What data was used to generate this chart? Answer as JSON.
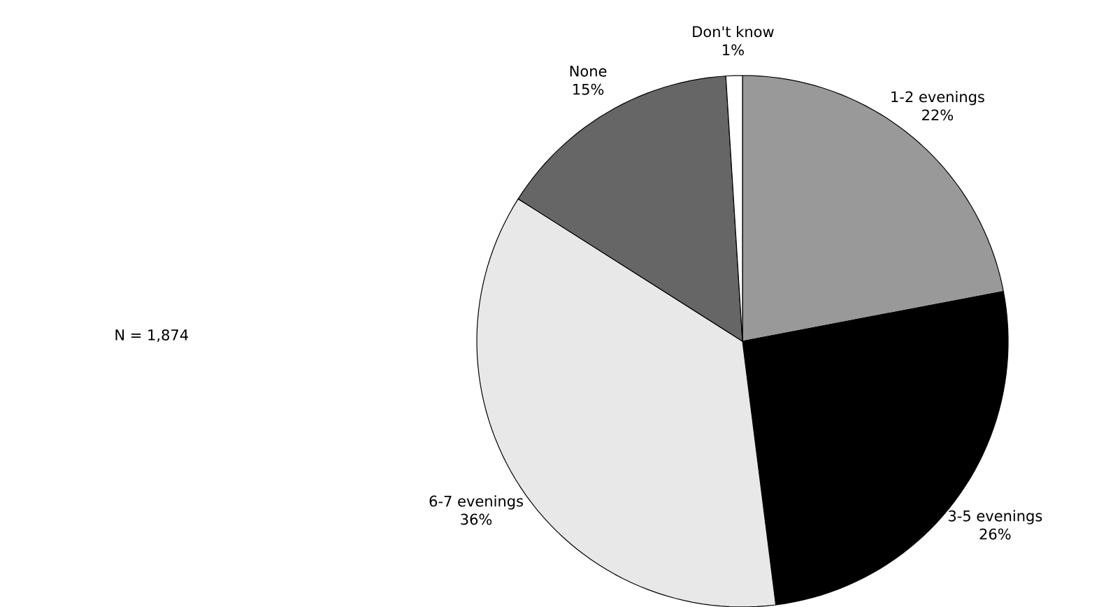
{
  "chart_data": {
    "type": "pie",
    "categories": [
      "1-2 evenings",
      "3-5 evenings",
      "6-7 evenings",
      "None",
      "Don't know"
    ],
    "values": [
      22,
      26,
      36,
      15,
      1
    ],
    "value_labels": [
      "22%",
      "26%",
      "36%",
      "15%",
      "1%"
    ],
    "colors": [
      "#999999",
      "#000000",
      "#e8e8e8",
      "#666666",
      "#ffffff"
    ],
    "annotations": [
      "N = 1,874"
    ]
  }
}
